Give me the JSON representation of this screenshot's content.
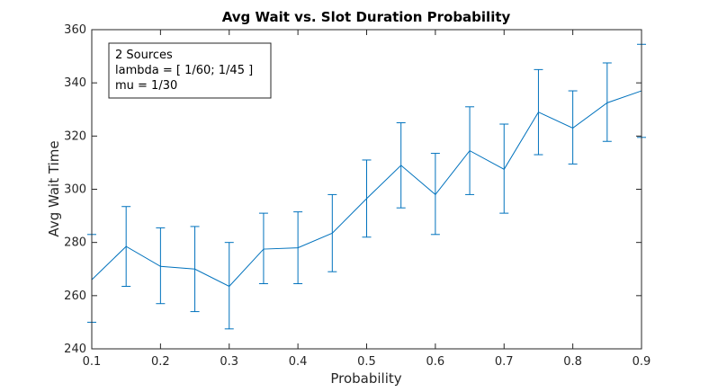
{
  "chart_data": {
    "type": "line",
    "title": "Avg Wait vs. Slot Duration Probability",
    "xlabel": "Probability",
    "ylabel": "Avg Wait Time",
    "xlim": [
      0.1,
      0.9
    ],
    "ylim": [
      240,
      360
    ],
    "xticks": [
      0.1,
      0.2,
      0.3,
      0.4,
      0.5,
      0.6,
      0.7,
      0.8,
      0.9
    ],
    "yticks": [
      240,
      260,
      280,
      300,
      320,
      340,
      360
    ],
    "grid": false,
    "line_color": "#0072bd",
    "series": [
      {
        "x": [
          0.1,
          0.15,
          0.2,
          0.25,
          0.3,
          0.35,
          0.4,
          0.45,
          0.5,
          0.55,
          0.6,
          0.65,
          0.7,
          0.75,
          0.8,
          0.85,
          0.9
        ],
        "y": [
          266,
          278.5,
          271,
          270,
          263.5,
          277.5,
          278,
          283.5,
          296.5,
          309,
          298,
          314.5,
          307.5,
          329,
          323,
          332.5,
          337
        ],
        "err_low": [
          250,
          263.5,
          257,
          254,
          247.5,
          264.5,
          264.5,
          269,
          282,
          293,
          283,
          298,
          291,
          313,
          309.5,
          318,
          319.5
        ],
        "err_high": [
          283,
          293.5,
          285.5,
          286,
          280,
          291,
          291.5,
          298,
          311,
          325,
          313.5,
          331,
          324.5,
          345,
          337,
          347.5,
          354.5
        ]
      }
    ],
    "annotation": {
      "position": "top-left",
      "lines": [
        "2 Sources",
        "lambda = [ 1/60; 1/45 ]",
        "mu = 1/30"
      ]
    }
  }
}
